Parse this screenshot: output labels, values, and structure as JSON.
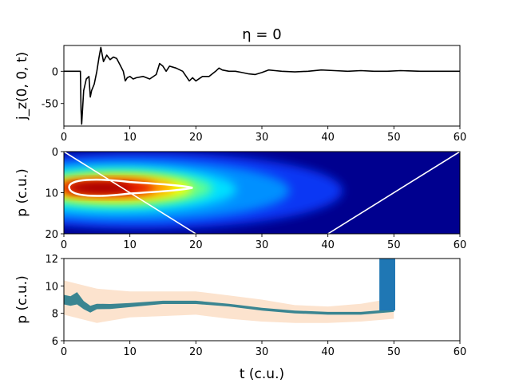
{
  "chart_data": [
    {
      "type": "line",
      "title": "η = 0",
      "ylabel": "j_z(0, 0, t)",
      "xlabel": "",
      "xlim": [
        0,
        60
      ],
      "ylim": [
        -85,
        40
      ],
      "xticks": [
        "0",
        "10",
        "20",
        "30",
        "40",
        "50",
        "60"
      ],
      "yticks": [
        {
          "v": 0,
          "label": "0"
        },
        {
          "v": -50,
          "label": "-50"
        }
      ],
      "grid": false,
      "series": [
        {
          "color": "#000000",
          "x": [
            0,
            2.5,
            2.6,
            2.7,
            3.0,
            3.4,
            3.8,
            4.0,
            4.2,
            4.6,
            5.0,
            5.3,
            5.6,
            6.0,
            6.5,
            7.0,
            7.5,
            8.0,
            8.5,
            9.0,
            9.3,
            9.6,
            10.0,
            10.5,
            11.0,
            12.0,
            13.0,
            14.0,
            14.5,
            15.0,
            15.5,
            16.0,
            17.0,
            18.0,
            19.0,
            19.5,
            20.0,
            21.0,
            22.0,
            23.0,
            23.5,
            24.0,
            25.0,
            26.0,
            27.0,
            28.0,
            29.0,
            30.0,
            31.0,
            32.0,
            33.0,
            35.0,
            37.0,
            39.0,
            41.0,
            43.0,
            45.0,
            47.0,
            49.0,
            51.0,
            54.0,
            57.0,
            60.0
          ],
          "y": [
            0,
            0,
            -60,
            -82,
            -30,
            -12,
            -8,
            -40,
            -30,
            -20,
            0,
            20,
            37,
            15,
            25,
            18,
            22,
            20,
            10,
            0,
            -15,
            -10,
            -8,
            -12,
            -10,
            -8,
            -12,
            -5,
            12,
            8,
            0,
            8,
            5,
            0,
            -15,
            -10,
            -15,
            -8,
            -8,
            0,
            5,
            2,
            0,
            0,
            -2,
            -4,
            -5,
            -2,
            2,
            1,
            0,
            -1,
            0,
            2,
            1,
            0,
            1,
            0,
            0,
            1,
            0,
            0,
            0
          ]
        }
      ]
    },
    {
      "type": "heatmap",
      "ylabel": "p (c.u.)",
      "xlabel": "",
      "xlim": [
        0,
        60
      ],
      "ylim": [
        20,
        0
      ],
      "xticks": [
        "0",
        "10",
        "20",
        "30",
        "40",
        "50",
        "60"
      ],
      "yticks": [
        {
          "v": 0,
          "label": "0"
        },
        {
          "v": 10,
          "label": "10"
        },
        {
          "v": 20,
          "label": "20"
        }
      ],
      "colormap": "jet",
      "hot_spot": {
        "t": 6,
        "p": 8.8
      },
      "contour_color": "#ffffff",
      "lines": [
        {
          "color": "#ffffff",
          "x": [
            0,
            20
          ],
          "y": [
            0,
            20
          ]
        },
        {
          "color": "#ffffff",
          "x": [
            40,
            60
          ],
          "y": [
            20,
            0
          ]
        }
      ]
    },
    {
      "type": "area",
      "ylabel": "p (c.u.)",
      "xlabel": "t (c.u.)",
      "xlim": [
        0,
        60
      ],
      "ylim": [
        6,
        12
      ],
      "xticks": [
        "0",
        "10",
        "20",
        "30",
        "40",
        "50",
        "60"
      ],
      "yticks": [
        {
          "v": 6,
          "label": "6"
        },
        {
          "v": 8,
          "label": "8"
        },
        {
          "v": 10,
          "label": "10"
        },
        {
          "v": 12,
          "label": "12"
        }
      ],
      "series": [
        {
          "role": "band",
          "color": "#fbd9bd",
          "x": [
            0,
            5,
            10,
            15,
            20,
            25,
            30,
            35,
            40,
            45,
            50
          ],
          "upper": [
            10.4,
            9.8,
            9.6,
            9.6,
            9.6,
            9.3,
            9.0,
            8.6,
            8.5,
            8.7,
            9.1
          ],
          "lower": [
            7.9,
            7.3,
            7.7,
            7.8,
            7.9,
            7.6,
            7.4,
            7.3,
            7.3,
            7.4,
            7.6
          ]
        },
        {
          "role": "center",
          "color": "#3a8591",
          "x": [
            0,
            1,
            2,
            3,
            4,
            5,
            7,
            10,
            15,
            20,
            25,
            30,
            35,
            40,
            45,
            50
          ],
          "y": [
            9.0,
            8.9,
            9.1,
            8.6,
            8.3,
            8.5,
            8.5,
            8.6,
            8.8,
            8.8,
            8.6,
            8.3,
            8.1,
            8.0,
            8.0,
            8.2
          ],
          "halfwidth": [
            0.35,
            0.35,
            0.45,
            0.3,
            0.25,
            0.2,
            0.18,
            0.15,
            0.12,
            0.12,
            0.1,
            0.1,
            0.1,
            0.1,
            0.1,
            0.1
          ]
        },
        {
          "role": "block",
          "color": "#1f77b4",
          "x": [
            47.8,
            50.2
          ],
          "y": [
            8.2,
            12
          ]
        }
      ]
    }
  ]
}
